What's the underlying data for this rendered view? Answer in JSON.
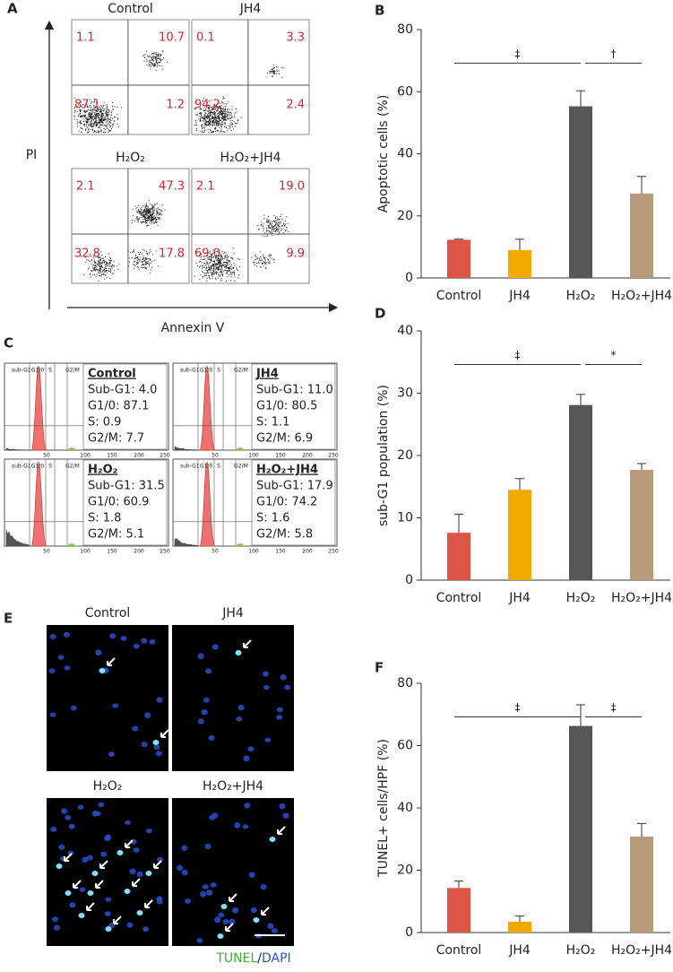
{
  "panel_labels": {
    "a": "A",
    "b": "B",
    "c": "C",
    "d": "D",
    "e": "E",
    "f": "F"
  },
  "flow": {
    "y_label": "PI",
    "x_label": "Annexin V",
    "panels": [
      {
        "title": "Control",
        "quadrants": [
          "1.1",
          "10.7",
          "87.1",
          "1.2"
        ]
      },
      {
        "title": "JH4",
        "quadrants": [
          "0.1",
          "3.3",
          "94.2",
          "2.4"
        ]
      },
      {
        "title": "H₂O₂",
        "quadrants": [
          "2.1",
          "47.3",
          "32.8",
          "17.8"
        ]
      },
      {
        "title": "H₂O₂+JH4",
        "quadrants": [
          "2.1",
          "19.0",
          "69.0",
          "9.9"
        ]
      }
    ]
  },
  "cell_cycle": {
    "gates": [
      "sub-G1",
      "G1/0",
      "S",
      "G2/M"
    ],
    "x_tick_labels": [
      "50",
      "100",
      "150",
      "200",
      "250"
    ],
    "panels": [
      {
        "title": "Control",
        "lines": [
          "Sub-G1: 4.0",
          "G1/0: 87.1",
          "S: 0.9",
          "G2/M: 7.7"
        ]
      },
      {
        "title": "JH4",
        "lines": [
          "Sub-G1: 11.0",
          "G1/0: 80.5",
          "S: 1.1",
          "G2/M: 6.9"
        ]
      },
      {
        "title": "H₂O₂",
        "lines": [
          "Sub-G1: 31.5",
          "G1/0: 60.9",
          "S: 1.8",
          "G2/M: 5.1"
        ]
      },
      {
        "title": "H₂O₂+JH4",
        "lines": [
          "Sub-G1: 17.9",
          "G1/0: 74.2",
          "S: 1.6",
          "G2/M: 5.8"
        ]
      }
    ]
  },
  "tunel": {
    "titles": [
      "Control",
      "JH4",
      "H₂O₂",
      "H₂O₂+JH4"
    ],
    "legend": {
      "tunel": "TUNEL",
      "sep": "/",
      "dapi": "DAPI"
    }
  },
  "chart_data": [
    {
      "type": "bar",
      "y_label": "Apoptotic cells (%)",
      "categories": [
        "Control",
        "JH4",
        "H₂O₂",
        "H₂O₂+JH4"
      ],
      "values": [
        12.3,
        9.0,
        55.3,
        27.2
      ],
      "errors": [
        0.2,
        3.5,
        5.0,
        5.5
      ],
      "colors": [
        "#dd5545",
        "#f0aa00",
        "#575757",
        "#b89a78"
      ],
      "ylim": [
        0,
        80
      ],
      "yticks": [
        0,
        20,
        40,
        60,
        80
      ],
      "significance": [
        "‡",
        "†"
      ]
    },
    {
      "type": "bar",
      "y_label": "sub-G1 population (%)",
      "categories": [
        "Control",
        "JH4",
        "H₂O₂",
        "H₂O₂+JH4"
      ],
      "values": [
        7.6,
        14.5,
        28.1,
        17.7
      ],
      "errors": [
        3.0,
        1.8,
        1.7,
        1.0
      ],
      "colors": [
        "#dd5545",
        "#f0aa00",
        "#575757",
        "#b89a78"
      ],
      "ylim": [
        0,
        40
      ],
      "yticks": [
        0,
        10,
        20,
        30,
        40
      ],
      "significance": [
        "‡",
        "*"
      ]
    },
    {
      "type": "bar",
      "y_label": "TUNEL+ cells/HPF (%)",
      "categories": [
        "Control",
        "JH4",
        "H₂O₂",
        "H₂O₂+JH4"
      ],
      "values": [
        14.3,
        3.5,
        66.3,
        30.8
      ],
      "errors": [
        2.2,
        1.8,
        6.8,
        4.2
      ],
      "colors": [
        "#dd5545",
        "#f0aa00",
        "#575757",
        "#b89a78"
      ],
      "ylim": [
        0,
        80
      ],
      "yticks": [
        0,
        20,
        40,
        60,
        80
      ],
      "significance": [
        "‡",
        "‡"
      ]
    }
  ]
}
